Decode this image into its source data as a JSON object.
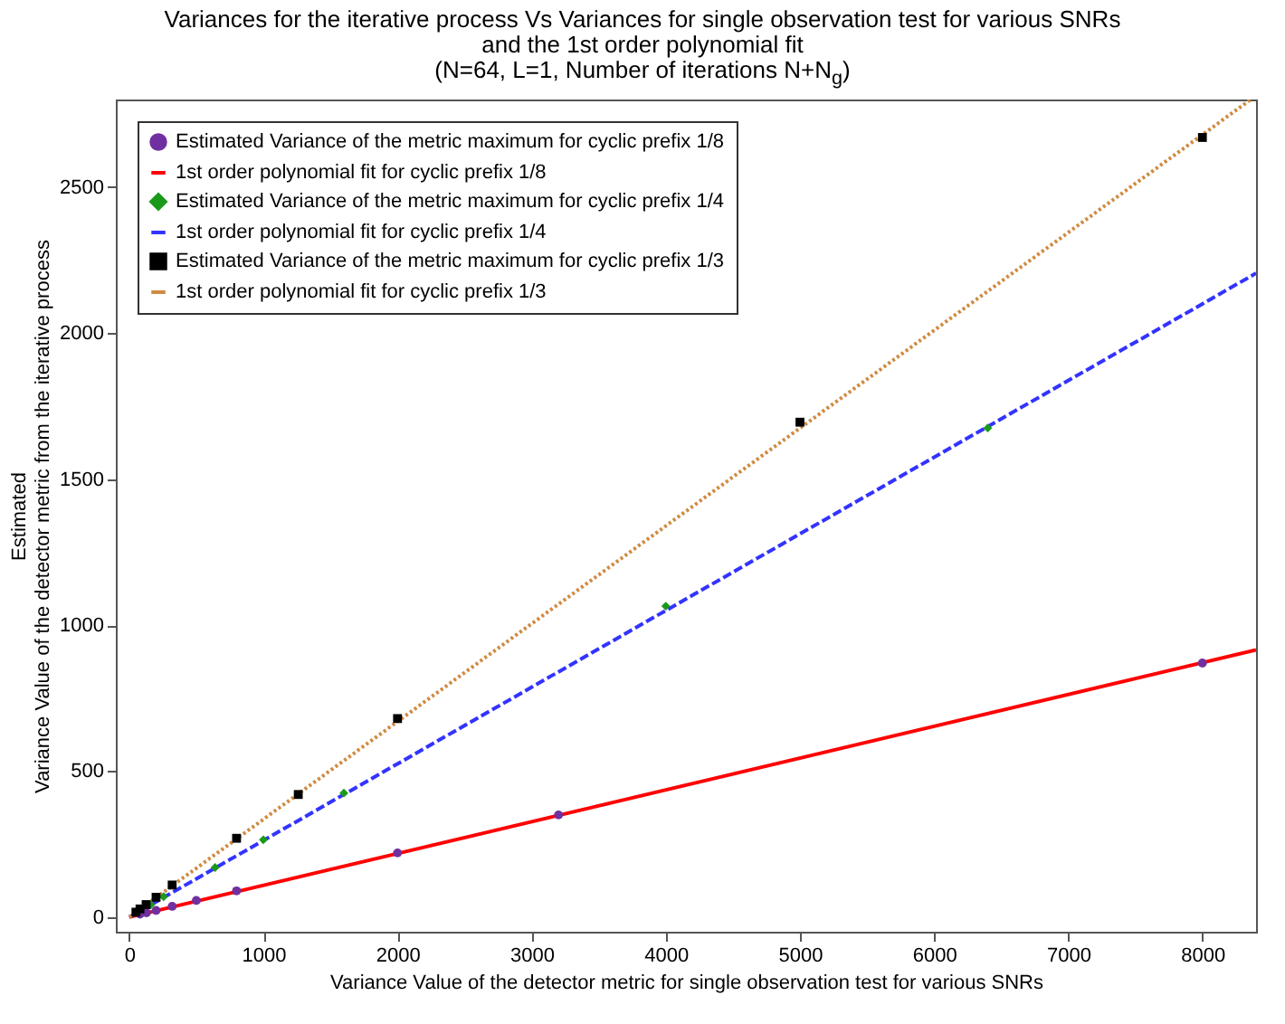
{
  "chart_data": {
    "type": "scatter",
    "title": "Variances for the iterative process Vs Variances for single observation test for various SNRs\nand the 1st order polynomial fit",
    "subtitle": "(N=64, L=1, Number of iterations N+N$_{g}$)",
    "xlabel": "Variance Value of the detector metric for single observation test for various SNRs",
    "ylabel": "Estimated\nVariance Value of the detector metric from the iterative process",
    "xlim": [
      -100,
      8400
    ],
    "xticks": [
      0,
      1000,
      2000,
      3000,
      4000,
      5000,
      6000,
      7000,
      8000
    ],
    "ylim": [
      -50,
      2800
    ],
    "yticks": [
      0,
      500,
      1000,
      1500,
      2000,
      2500
    ],
    "grid": false,
    "legend": "top left",
    "series": [
      {
        "name": "Estimated Variance of the metric maximum for cyclic prefix 1/8",
        "marker": "circle",
        "color": "#7030a0",
        "x": [
          8000,
          3200,
          2000,
          800,
          500,
          320,
          200,
          128,
          80
        ],
        "values": [
          870,
          350,
          220,
          90,
          57,
          37,
          23,
          15,
          10
        ]
      },
      {
        "name": "1st order polynomial fit for cyclic prefix 1/8",
        "type": "line",
        "line_style": "solid",
        "color": "#ff0000",
        "x": [
          0,
          8400
        ],
        "values": [
          0,
          915
        ]
      },
      {
        "name": "Estimated Variance of the metric maximum for cyclic prefix 1/4",
        "marker": "diamond",
        "color": "#1a9a1a",
        "x": [
          6400,
          4000,
          1600,
          1000,
          640,
          256,
          160
        ],
        "values": [
          1675,
          1065,
          425,
          265,
          170,
          70,
          42
        ]
      },
      {
        "name": "1st order polynomial fit for cyclic prefix 1/4",
        "type": "line",
        "line_style": "dashed",
        "color": "#3333ff",
        "x": [
          0,
          8400
        ],
        "values": [
          0,
          2205
        ]
      },
      {
        "name": "Estimated Variance of the metric maximum for cyclic prefix 1/3",
        "marker": "square",
        "color": "#000000",
        "x": [
          8000,
          5000,
          2000,
          1260,
          800,
          320,
          200,
          126,
          80,
          50
        ],
        "values": [
          2670,
          1695,
          680,
          420,
          270,
          110,
          68,
          43,
          28,
          17
        ]
      },
      {
        "name": "1st order polynomial fit for cyclic prefix 1/3",
        "type": "line",
        "line_style": "dotted",
        "color": "#d08a40",
        "x": [
          0,
          8360
        ],
        "values": [
          0,
          2800
        ]
      }
    ]
  }
}
